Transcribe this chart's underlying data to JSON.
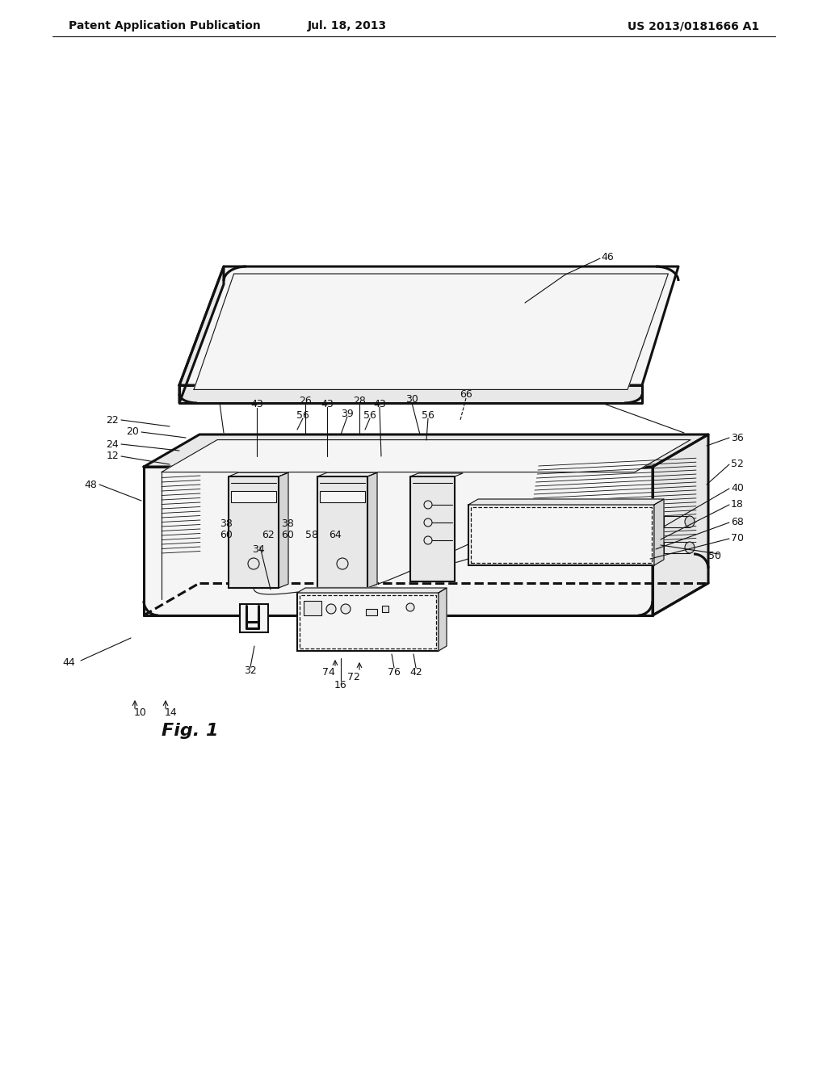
{
  "bg_color": "#ffffff",
  "header_left": "Patent Application Publication",
  "header_center": "Jul. 18, 2013",
  "header_right": "US 2013/0181666 A1",
  "fig_label": "Fig. 1",
  "line_color": "#111111",
  "fill_light": "#f5f5f5",
  "fill_mid": "#e8e8e8",
  "fill_dark": "#d5d5d5",
  "lw_main": 1.5,
  "lw_thin": 0.8,
  "lw_thick": 2.2,
  "lw_dash": 0.9
}
